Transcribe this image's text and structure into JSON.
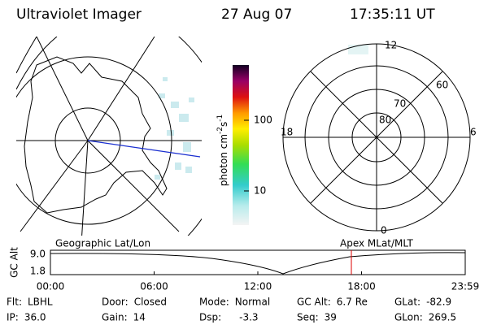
{
  "header": {
    "title": "Ultraviolet Imager",
    "date": "27 Aug 07",
    "time": "17:35:11 UT"
  },
  "colorbar": {
    "label": "photon cm",
    "exp1": "-2",
    "unit2": "s",
    "exp2": "-1",
    "ticks": [
      "100",
      "10"
    ]
  },
  "polar": {
    "mlt_labels": [
      "12",
      "18",
      "6",
      "0"
    ],
    "lat_labels": [
      "60",
      "70",
      "80"
    ]
  },
  "timeline": {
    "left_title": "Geographic Lat/Lon",
    "right_title": "Apex MLat/MLT",
    "y_label": "GC Alt",
    "y_ticks": [
      "9.0",
      "1.8"
    ],
    "x_ticks": [
      "00:00",
      "06:00",
      "12:00",
      "18:00",
      "23:59"
    ]
  },
  "info": [
    [
      {
        "label": "Flt:",
        "value": "LBHL"
      },
      {
        "label": "Door:",
        "value": "Closed"
      },
      {
        "label": "Mode:",
        "value": "Normal"
      },
      {
        "label": "GC Alt:",
        "value": "6.7 Re"
      },
      {
        "label": "GLat:",
        "value": "-82.9"
      }
    ],
    [
      {
        "label": "IP:",
        "value": "36.0"
      },
      {
        "label": "Gain:",
        "value": "14"
      },
      {
        "label": "Dsp:",
        "value": "-3.3"
      },
      {
        "label": "Seq:",
        "value": "39"
      },
      {
        "label": "GLon:",
        "value": "269.5"
      }
    ]
  ]
}
